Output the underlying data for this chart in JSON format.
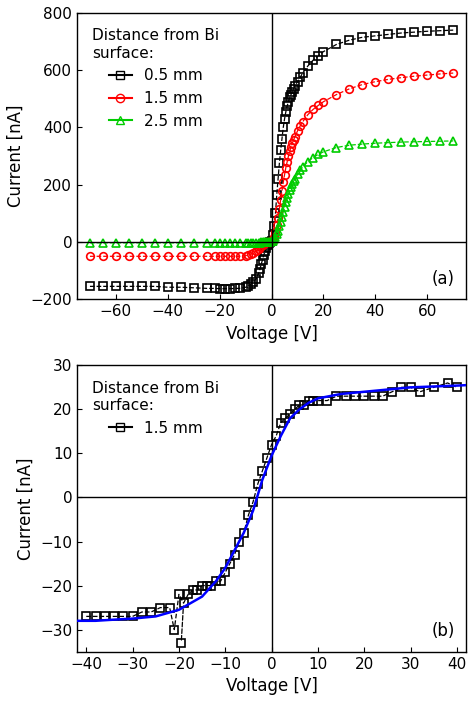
{
  "title_a": "(a)",
  "title_b": "(b)",
  "xlabel": "Voltage [V]",
  "ylabel": "Current [nA]",
  "panel_a": {
    "xlim": [
      -75,
      75
    ],
    "ylim": [
      -200,
      800
    ],
    "yticks": [
      -200,
      0,
      200,
      400,
      600,
      800
    ],
    "xticks": [
      -60,
      -40,
      -20,
      0,
      20,
      40,
      60
    ],
    "series": [
      {
        "label": "0.5 mm",
        "color": "#000000",
        "marker": "s",
        "x_neg": [
          -70,
          -65,
          -60,
          -55,
          -50,
          -45,
          -40,
          -35,
          -30,
          -25,
          -22,
          -20,
          -18,
          -16,
          -14,
          -12,
          -10,
          -9,
          -8,
          -7,
          -6,
          -5,
          -4.5,
          -4,
          -3.5,
          -3,
          -2.5,
          -2,
          -1.5,
          -1,
          -0.5
        ],
        "y_neg": [
          -155,
          -155,
          -155,
          -155,
          -155,
          -155,
          -158,
          -158,
          -160,
          -162,
          -162,
          -163,
          -163,
          -163,
          -162,
          -162,
          -158,
          -155,
          -148,
          -140,
          -128,
          -110,
          -95,
          -78,
          -62,
          -45,
          -32,
          -20,
          -12,
          -5,
          -1
        ],
        "x_pos": [
          0,
          0.5,
          1,
          1.5,
          2,
          2.5,
          3,
          3.5,
          4,
          4.5,
          5,
          5.5,
          6,
          6.5,
          7,
          7.5,
          8,
          8.5,
          9,
          10,
          11,
          12,
          14,
          16,
          18,
          20,
          25,
          30,
          35,
          40,
          45,
          50,
          55,
          60,
          65,
          70
        ],
        "y_pos": [
          5,
          25,
          55,
          100,
          165,
          220,
          275,
          320,
          360,
          400,
          430,
          455,
          475,
          490,
          505,
          515,
          525,
          535,
          545,
          560,
          575,
          590,
          615,
          635,
          650,
          665,
          690,
          705,
          715,
          720,
          725,
          730,
          733,
          736,
          738,
          740
        ]
      },
      {
        "label": "1.5 mm",
        "color": "#ff0000",
        "marker": "o",
        "x_neg": [
          -70,
          -65,
          -60,
          -55,
          -50,
          -45,
          -40,
          -35,
          -30,
          -25,
          -22,
          -20,
          -18,
          -16,
          -14,
          -12,
          -10,
          -9,
          -8,
          -7,
          -6,
          -5,
          -4.5,
          -4,
          -3.5,
          -3,
          -2.5,
          -2,
          -1.5,
          -1,
          -0.5
        ],
        "y_neg": [
          -50,
          -50,
          -50,
          -50,
          -50,
          -50,
          -50,
          -50,
          -50,
          -50,
          -50,
          -50,
          -50,
          -50,
          -50,
          -50,
          -48,
          -45,
          -42,
          -38,
          -32,
          -24,
          -18,
          -13,
          -9,
          -5,
          -3,
          -1,
          -0.5,
          -0.2,
          0
        ],
        "x_pos": [
          0,
          0.5,
          1,
          1.5,
          2,
          2.5,
          3,
          3.5,
          4,
          4.5,
          5,
          5.5,
          6,
          6.5,
          7,
          7.5,
          8,
          8.5,
          9,
          10,
          11,
          12,
          14,
          16,
          18,
          20,
          25,
          30,
          35,
          40,
          45,
          50,
          55,
          60,
          65,
          70
        ],
        "y_pos": [
          2,
          8,
          18,
          35,
          58,
          85,
          115,
          148,
          178,
          208,
          235,
          260,
          280,
          300,
          318,
          332,
          345,
          357,
          368,
          388,
          405,
          420,
          445,
          463,
          477,
          490,
          515,
          535,
          550,
          560,
          568,
          574,
          579,
          583,
          587,
          590
        ]
      },
      {
        "label": "2.5 mm",
        "color": "#00cc00",
        "marker": "^",
        "x_neg": [
          -70,
          -65,
          -60,
          -55,
          -50,
          -45,
          -40,
          -35,
          -30,
          -25,
          -22,
          -20,
          -18,
          -16,
          -14,
          -12,
          -10,
          -9,
          -8,
          -7,
          -6,
          -5,
          -4.5,
          -4,
          -3.5,
          -3,
          -2.5,
          -2,
          -1.5,
          -1,
          -0.5
        ],
        "y_neg": [
          -3,
          -3,
          -3,
          -3,
          -3,
          -3,
          -3,
          -3,
          -3,
          -3,
          -3,
          -3,
          -3,
          -3,
          -3,
          -3,
          -3,
          -3,
          -3,
          -3,
          -2,
          -2,
          -2,
          -1,
          -1,
          -1,
          -0.5,
          -0.2,
          0,
          0,
          0
        ],
        "x_pos": [
          0,
          0.5,
          1,
          1.5,
          2,
          2.5,
          3,
          3.5,
          4,
          4.5,
          5,
          5.5,
          6,
          6.5,
          7,
          7.5,
          8,
          8.5,
          9,
          10,
          11,
          12,
          14,
          16,
          18,
          20,
          25,
          30,
          35,
          40,
          45,
          50,
          55,
          60,
          65,
          70
        ],
        "y_pos": [
          2,
          5,
          10,
          18,
          28,
          40,
          55,
          70,
          88,
          105,
          122,
          138,
          153,
          167,
          180,
          192,
          202,
          212,
          220,
          236,
          250,
          262,
          281,
          295,
          306,
          315,
          330,
          338,
          342,
          345,
          347,
          349,
          350,
          351,
          352,
          353
        ]
      }
    ]
  },
  "panel_b": {
    "xlim": [
      -42,
      42
    ],
    "ylim": [
      -35,
      30
    ],
    "yticks": [
      -30,
      -20,
      -10,
      0,
      10,
      20,
      30
    ],
    "xticks": [
      -40,
      -30,
      -20,
      -10,
      0,
      10,
      20,
      30,
      40
    ],
    "scatter_x": [
      -40,
      -38,
      -36,
      -34,
      -32,
      -30,
      -28,
      -26,
      -24,
      -22,
      -21,
      -20,
      -19,
      -18,
      -17,
      -16,
      -15,
      -14,
      -13,
      -12,
      -11,
      -10,
      -9,
      -8,
      -7,
      -6,
      -5,
      -4,
      -3,
      -2,
      -1,
      0,
      1,
      2,
      3,
      4,
      5,
      6,
      7,
      8,
      9,
      10,
      12,
      14,
      16,
      18,
      20,
      22,
      24,
      26,
      28,
      30,
      32,
      35,
      38,
      40
    ],
    "scatter_y": [
      -27,
      -27,
      -27,
      -27,
      -27,
      -27,
      -26,
      -26,
      -25,
      -25,
      -30,
      -22,
      -24,
      -22,
      -21,
      -21,
      -20,
      -20,
      -20,
      -19,
      -19,
      -17,
      -15,
      -13,
      -10,
      -8,
      -4,
      -1,
      3,
      6,
      9,
      12,
      14,
      17,
      18,
      19,
      20,
      21,
      21,
      22,
      22,
      22,
      22,
      23,
      23,
      23,
      23,
      23,
      23,
      24,
      25,
      25,
      24,
      25,
      26,
      25
    ],
    "outlier_x": [
      -19.5
    ],
    "outlier_y": [
      -33
    ],
    "fit_x": [
      -42,
      -40,
      -38,
      -35,
      -30,
      -25,
      -20,
      -15,
      -12,
      -10,
      -8,
      -6,
      -4,
      -2,
      0,
      2,
      4,
      6,
      8,
      10,
      15,
      20,
      25,
      30,
      35,
      40,
      42
    ],
    "fit_y": [
      -28,
      -28,
      -28,
      -27.8,
      -27.5,
      -27,
      -25.5,
      -22.5,
      -19,
      -16,
      -12,
      -8,
      -3,
      4,
      9.5,
      14,
      18,
      20,
      21.5,
      22.5,
      23.5,
      24,
      24.5,
      25,
      25.2,
      25.4,
      25.5
    ],
    "fit_color": "#0000ff",
    "legend_label": "1.5 mm"
  }
}
